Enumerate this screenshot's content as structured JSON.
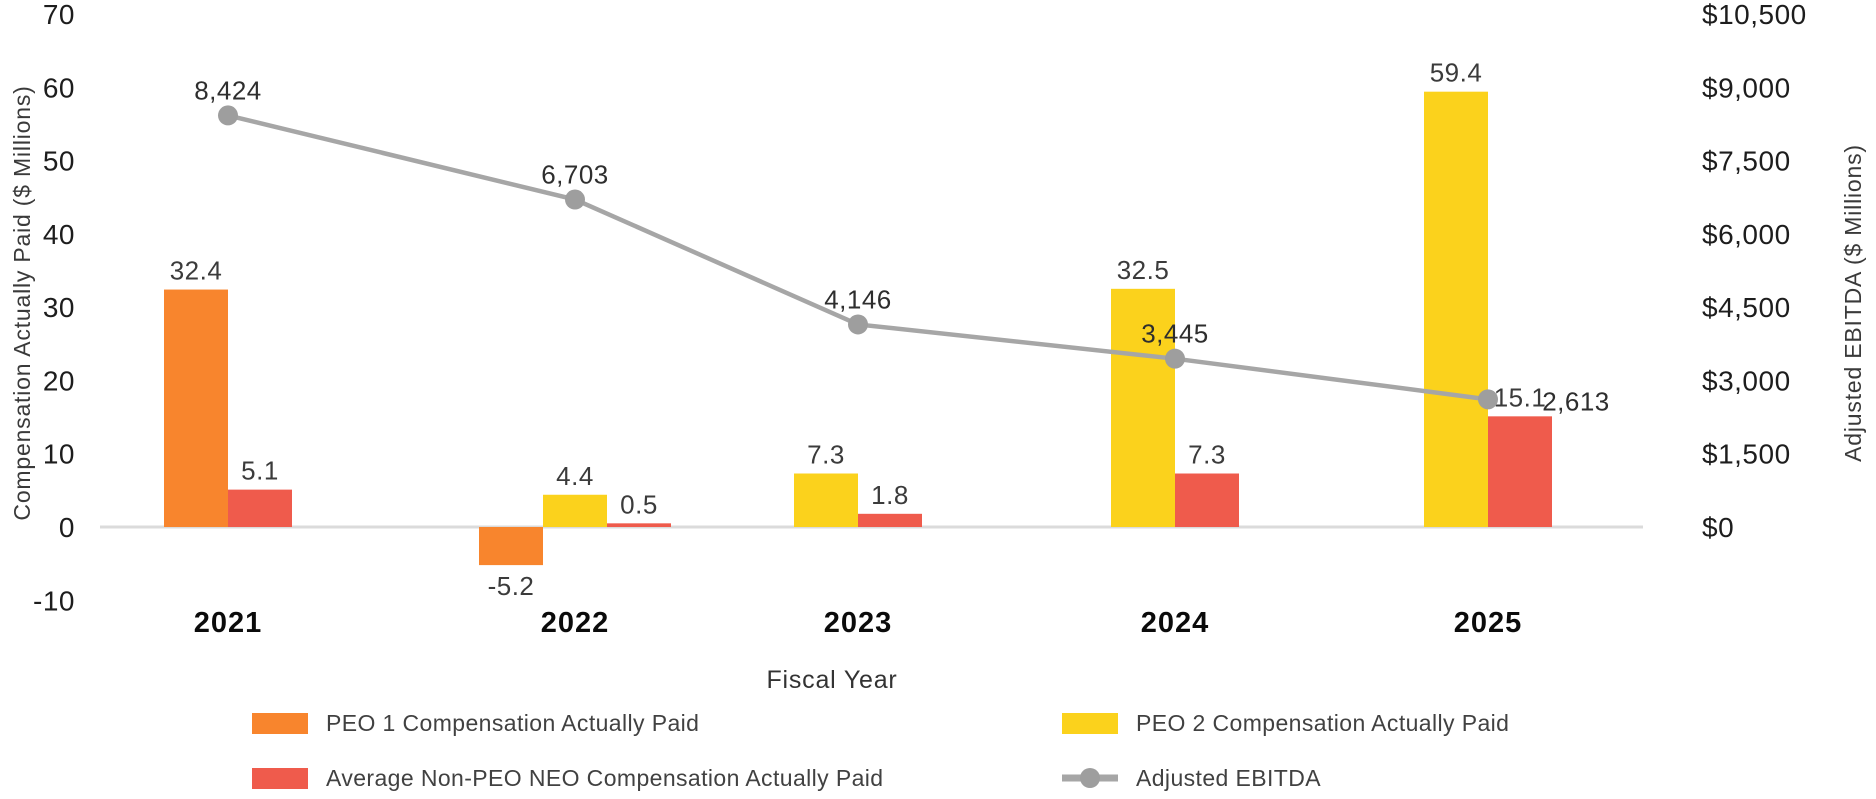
{
  "chart_data": {
    "type": "combo-bar-line",
    "categories": [
      "2021",
      "2022",
      "2023",
      "2024",
      "2025"
    ],
    "bar_series": [
      {
        "name": "PEO 1 Compensation Actually Paid",
        "color": "#F8852D",
        "values": [
          32.4,
          -5.2,
          null,
          null,
          null
        ],
        "labels": [
          "32.4",
          "-5.2",
          "",
          "",
          ""
        ]
      },
      {
        "name": "PEO 2 Compensation Actually Paid",
        "color": "#FBD21C",
        "values": [
          null,
          4.4,
          7.3,
          32.5,
          59.4
        ],
        "labels": [
          "",
          "4.4",
          "7.3",
          "32.5",
          "59.4"
        ]
      },
      {
        "name": "Average Non-PEO NEO Compensation Actually Paid",
        "color": "#EF5B4C",
        "values": [
          5.1,
          0.5,
          1.8,
          7.3,
          15.1
        ],
        "labels": [
          "5.1",
          "0.5",
          "1.8",
          "7.3",
          "15.1"
        ]
      }
    ],
    "line_series": {
      "name": "Adjusted EBITDA",
      "line_color": "#A6A6A6",
      "marker_color": "#9E9E9E",
      "values": [
        8424,
        6703,
        4146,
        3445,
        2613
      ],
      "labels": [
        "8,424",
        "6,703",
        "4,146",
        "3,445",
        "2,613"
      ]
    },
    "left_axis": {
      "title": "Compensation Actually Paid ($ Millions)",
      "min": -10,
      "max": 70,
      "step": 10,
      "ticks": [
        "70",
        "60",
        "50",
        "40",
        "30",
        "20",
        "10",
        "0",
        "-10"
      ]
    },
    "right_axis": {
      "title": "Adjusted EBITDA ($ Millions)",
      "min": 0,
      "max": 10500,
      "step": 1500,
      "ticks": [
        "$10,500",
        "$9,000",
        "$7,500",
        "$6,000",
        "$4,500",
        "$3,000",
        "$1,500",
        "$0"
      ]
    },
    "x_axis": {
      "title": "Fiscal Year"
    },
    "grid": "off",
    "baseline_color": "#DBDBDB",
    "legend_position": "bottom-two-columns",
    "legend": [
      {
        "swatch": "bar",
        "color": "#F8852D",
        "label": "PEO 1 Compensation Actually Paid"
      },
      {
        "swatch": "bar",
        "color": "#FBD21C",
        "label": "PEO 2 Compensation Actually Paid"
      },
      {
        "swatch": "bar",
        "color": "#EF5B4C",
        "label": "Average Non-PEO NEO Compensation Actually Paid"
      },
      {
        "swatch": "line-marker",
        "color": "#A6A6A6",
        "label": "Adjusted EBITDA"
      }
    ]
  }
}
